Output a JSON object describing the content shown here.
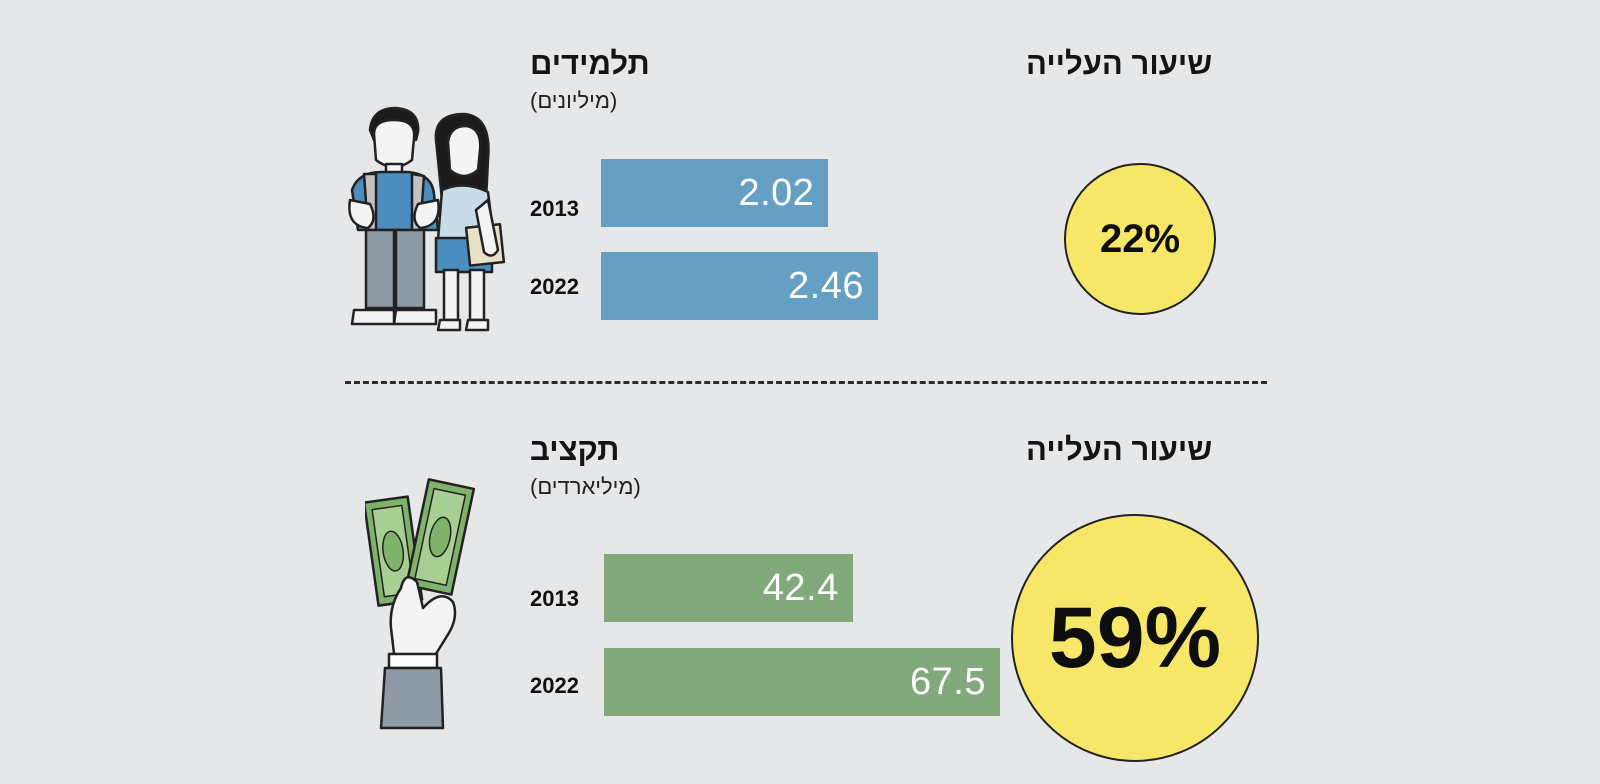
{
  "colors": {
    "background": "#e6e7e9",
    "students_bar": "#659fc4",
    "budget_bar": "#82a97c",
    "circle_fill": "#f6e769"
  },
  "sections": [
    {
      "id": "students",
      "title": "תלמידים",
      "unit": "(מיליונים)",
      "rate_label": "שיעור העלייה",
      "rate_value": "22%",
      "icon": "students-icon"
    },
    {
      "id": "budget",
      "title": "תקציב",
      "unit": "(מיליארדים)",
      "rate_label": "שיעור העלייה",
      "rate_value": "59%",
      "icon": "money-hand-icon"
    }
  ],
  "chart_data": [
    {
      "type": "bar",
      "title": "תלמידים",
      "subtitle": "(מיליונים)",
      "categories": [
        "2013",
        "2022"
      ],
      "values": [
        2.02,
        2.46
      ],
      "value_labels": [
        "2.02",
        "2.46"
      ],
      "annotation": "22%"
    },
    {
      "type": "bar",
      "title": "תקציב",
      "subtitle": "(מיליארדים)",
      "categories": [
        "2013",
        "2022"
      ],
      "values": [
        42.4,
        67.5
      ],
      "value_labels": [
        "42.4",
        "67.5"
      ],
      "annotation": "59%"
    }
  ]
}
